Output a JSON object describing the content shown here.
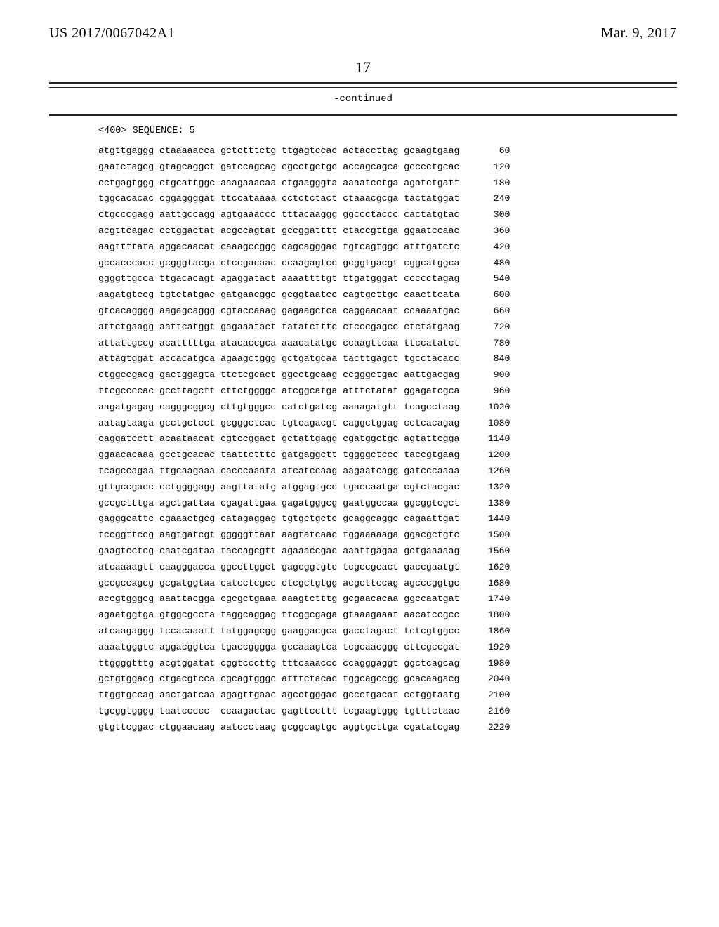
{
  "header": {
    "pub_number": "US 2017/0067042A1",
    "pub_date": "Mar. 9, 2017"
  },
  "page_number": "17",
  "continued_label": "-continued",
  "sequence_header": "<400> SEQUENCE: 5",
  "rows": [
    {
      "g": [
        "atgttgaggg",
        "ctaaaaacca",
        "gctctttctg",
        "ttgagtccac",
        "actaccttag",
        "gcaagtgaag"
      ],
      "p": "60"
    },
    {
      "g": [
        "gaatctagcg",
        "gtagcaggct",
        "gatccagcag",
        "cgcctgctgc",
        "accagcagca",
        "gcccctgcac"
      ],
      "p": "120"
    },
    {
      "g": [
        "cctgagtggg",
        "ctgcattggc",
        "aaagaaacaa",
        "ctgaagggta",
        "aaaatcctga",
        "agatctgatt"
      ],
      "p": "180"
    },
    {
      "g": [
        "tggcacacac",
        "cggaggggat",
        "ttccataaaa",
        "cctctctact",
        "ctaaacgcga",
        "tactatggat"
      ],
      "p": "240"
    },
    {
      "g": [
        "ctgcccgagg",
        "aattgccagg",
        "agtgaaaccc",
        "tttacaaggg",
        "ggccctaccc",
        "cactatgtac"
      ],
      "p": "300"
    },
    {
      "g": [
        "acgttcagac",
        "cctggactat",
        "acgccagtat",
        "gccggatttt",
        "ctaccgttga",
        "ggaatccaac"
      ],
      "p": "360"
    },
    {
      "g": [
        "aagttttata",
        "aggacaacat",
        "caaagccggg",
        "cagcagggac",
        "tgtcagtggc",
        "atttgatctc"
      ],
      "p": "420"
    },
    {
      "g": [
        "gccacccacc",
        "gcgggtacga",
        "ctccgacaac",
        "ccaagagtcc",
        "gcggtgacgt",
        "cggcatggca"
      ],
      "p": "480"
    },
    {
      "g": [
        "ggggttgcca",
        "ttgacacagt",
        "agaggatact",
        "aaaattttgt",
        "ttgatgggat",
        "ccccctagag"
      ],
      "p": "540"
    },
    {
      "g": [
        "aagatgtccg",
        "tgtctatgac",
        "gatgaacggc",
        "gcggtaatcc",
        "cagtgcttgc",
        "caacttcata"
      ],
      "p": "600"
    },
    {
      "g": [
        "gtcacagggg",
        "aagagcaggg",
        "cgtaccaaag",
        "gagaagctca",
        "caggaacaat",
        "ccaaaatgac"
      ],
      "p": "660"
    },
    {
      "g": [
        "attctgaagg",
        "aattcatggt",
        "gagaaatact",
        "tatatctttc",
        "ctcccgagcc",
        "ctctatgaag"
      ],
      "p": "720"
    },
    {
      "g": [
        "attattgccg",
        "acatttttga",
        "atacaccgca",
        "aaacatatgc",
        "ccaagttcaa",
        "ttccatatct"
      ],
      "p": "780"
    },
    {
      "g": [
        "attagtggat",
        "accacatgca",
        "agaagctggg",
        "gctgatgcaa",
        "tacttgagct",
        "tgcctacacc"
      ],
      "p": "840"
    },
    {
      "g": [
        "ctggccgacg",
        "gactggagta",
        "ttctcgcact",
        "ggcctgcaag",
        "ccgggctgac",
        "aattgacgag"
      ],
      "p": "900"
    },
    {
      "g": [
        "ttcgccccac",
        "gccttagctt",
        "cttctggggc",
        "atcggcatga",
        "atttctatat",
        "ggagatcgca"
      ],
      "p": "960"
    },
    {
      "g": [
        "aagatgagag",
        "cagggcggcg",
        "cttgtgggcc",
        "catctgatcg",
        "aaaagatgtt",
        "tcagcctaag"
      ],
      "p": "1020"
    },
    {
      "g": [
        "aatagtaaga",
        "gcctgctcct",
        "gcgggctcac",
        "tgtcagacgt",
        "caggctggag",
        "cctcacagag"
      ],
      "p": "1080"
    },
    {
      "g": [
        "caggatcctt",
        "acaataacat",
        "cgtccggact",
        "gctattgagg",
        "cgatggctgc",
        "agtattcgga"
      ],
      "p": "1140"
    },
    {
      "g": [
        "ggaacacaaa",
        "gcctgcacac",
        "taattctttc",
        "gatgaggctt",
        "tggggctccc",
        "taccgtgaag"
      ],
      "p": "1200"
    },
    {
      "g": [
        "tcagccagaa",
        "ttgcaagaaa",
        "cacccaaata",
        "atcatccaag",
        "aagaatcagg",
        "gatcccaaaa"
      ],
      "p": "1260"
    },
    {
      "g": [
        "gttgccgacc",
        "cctggggagg",
        "aagttatatg",
        "atggagtgcc",
        "tgaccaatga",
        "cgtctacgac"
      ],
      "p": "1320"
    },
    {
      "g": [
        "gccgctttga",
        "agctgattaa",
        "cgagattgaa",
        "gagatgggcg",
        "gaatggccaa",
        "ggcggtcgct"
      ],
      "p": "1380"
    },
    {
      "g": [
        "gagggcattc",
        "cgaaactgcg",
        "catagaggag",
        "tgtgctgctc",
        "gcaggcaggc",
        "cagaattgat"
      ],
      "p": "1440"
    },
    {
      "g": [
        "tccggttccg",
        "aagtgatcgt",
        "gggggttaat",
        "aagtatcaac",
        "tggaaaaaga",
        "ggacgctgtc"
      ],
      "p": "1500"
    },
    {
      "g": [
        "gaagtcctcg",
        "caatcgataa",
        "taccagcgtt",
        "agaaaccgac",
        "aaattgagaa",
        "gctgaaaaag"
      ],
      "p": "1560"
    },
    {
      "g": [
        "atcaaaagtt",
        "caagggacca",
        "ggccttggct",
        "gagcggtgtc",
        "tcgccgcact",
        "gaccgaatgt"
      ],
      "p": "1620"
    },
    {
      "g": [
        "gccgccagcg",
        "gcgatggtaa",
        "catcctcgcc",
        "ctcgctgtgg",
        "acgcttccag",
        "agcccggtgc"
      ],
      "p": "1680"
    },
    {
      "g": [
        "accgtgggcg",
        "aaattacgga",
        "cgcgctgaaa",
        "aaagtctttg",
        "gcgaacacaa",
        "ggccaatgat"
      ],
      "p": "1740"
    },
    {
      "g": [
        "agaatggtga",
        "gtggcgccta",
        "taggcaggag",
        "ttcggcgaga",
        "gtaaagaaat",
        "aacatccgcc"
      ],
      "p": "1800"
    },
    {
      "g": [
        "atcaagaggg",
        "tccacaaatt",
        "tatggagcgg",
        "gaaggacgca",
        "gacctagact",
        "tctcgtggcc"
      ],
      "p": "1860"
    },
    {
      "g": [
        "aaaatgggtc",
        "aggacggtca",
        "tgaccgggga",
        "gccaaagtca",
        "tcgcaacggg",
        "cttcgccgat"
      ],
      "p": "1920"
    },
    {
      "g": [
        "ttggggtttg",
        "acgtggatat",
        "cggtcccttg",
        "tttcaaaccc",
        "ccagggaggt",
        "ggctcagcag"
      ],
      "p": "1980"
    },
    {
      "g": [
        "gctgtggacg",
        "ctgacgtcca",
        "cgcagtgggc",
        "atttctacac",
        "tggcagccgg",
        "gcacaagacg"
      ],
      "p": "2040"
    },
    {
      "g": [
        "ttggtgccag",
        "aactgatcaa",
        "agagttgaac",
        "agcctgggac",
        "gccctgacat",
        "cctggtaatg"
      ],
      "p": "2100"
    },
    {
      "g": [
        "tgcggtgggg",
        "taatccccc",
        "ccaagactac",
        "gagttccttt",
        "tcgaagtggg",
        "tgtttctaac"
      ],
      "p": "2160"
    },
    {
      "g": [
        "gtgttcggac",
        "ctggaacaag",
        "aatccctaag",
        "gcggcagtgc",
        "aggtgcttga",
        "cgatatcgag"
      ],
      "p": "2220"
    }
  ]
}
